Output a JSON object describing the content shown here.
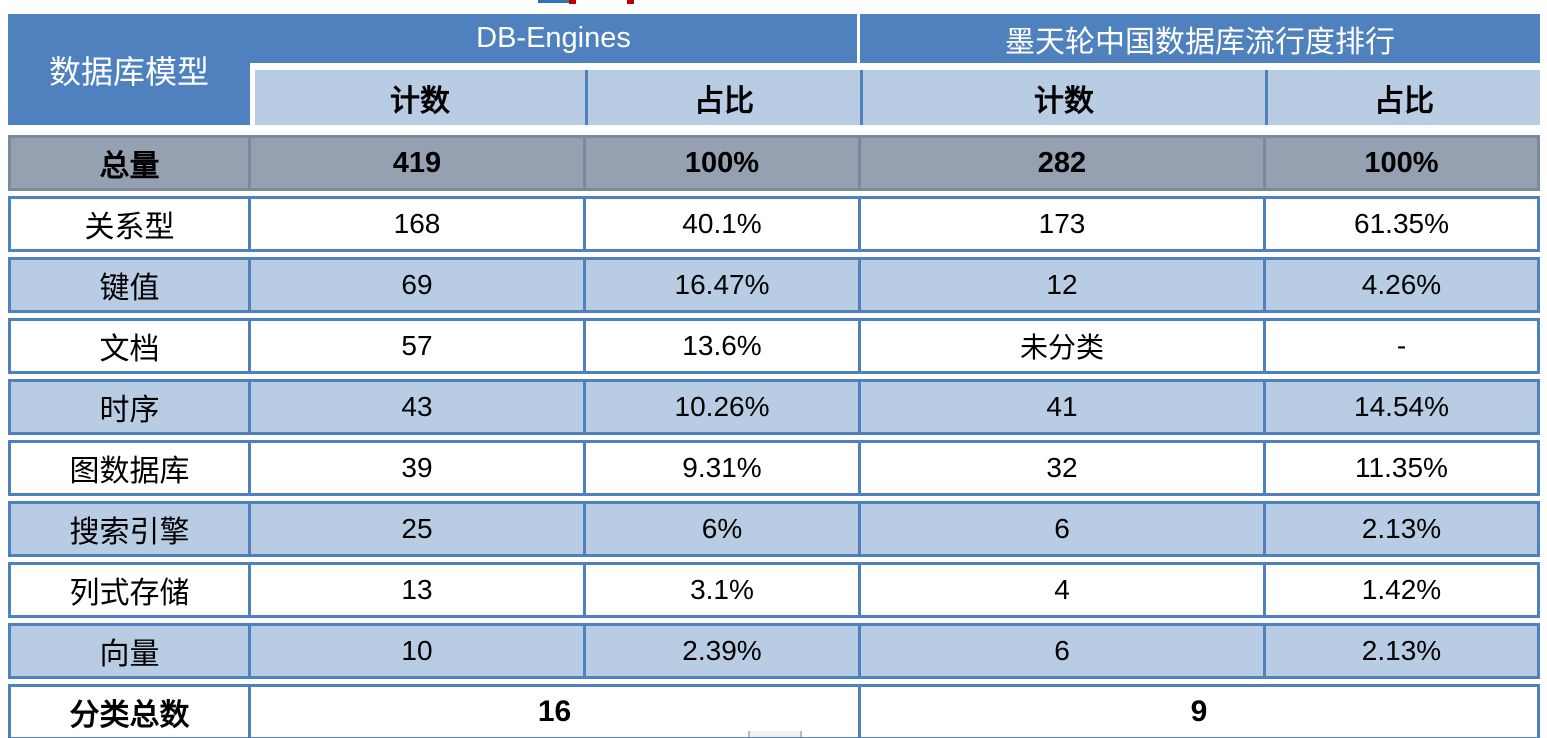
{
  "colors": {
    "header_blue": "#4E81BD",
    "band_light_blue": "#B8CCE4",
    "total_row_gray": "#95A1B1",
    "total_row_border": "#7B8A9B",
    "border_blue": "#4E81BD",
    "header_text": "#FFFFFF",
    "body_text": "#000000",
    "artifact_red": "#C00000",
    "artifact_blue": "#2E74B5"
  },
  "table": {
    "corner_header": "数据库模型",
    "groups": [
      {
        "label": "DB-Engines"
      },
      {
        "label": "墨天轮中国数据库流行度排行"
      }
    ],
    "subheaders": [
      "计数",
      "占比",
      "计数",
      "占比"
    ],
    "total_row": {
      "label": "总量",
      "cells": [
        "419",
        "100%",
        "282",
        "100%"
      ]
    },
    "rows": [
      {
        "label": "关系型",
        "cells": [
          "168",
          "40.1%",
          "173",
          "61.35%"
        ]
      },
      {
        "label": "键值",
        "cells": [
          "69",
          "16.47%",
          "12",
          "4.26%"
        ]
      },
      {
        "label": "文档",
        "cells": [
          "57",
          "13.6%",
          "未分类",
          "-"
        ]
      },
      {
        "label": "时序",
        "cells": [
          "43",
          "10.26%",
          "41",
          "14.54%"
        ]
      },
      {
        "label": "图数据库",
        "cells": [
          "39",
          "9.31%",
          "32",
          "11.35%"
        ]
      },
      {
        "label": "搜索引擎",
        "cells": [
          "25",
          "6%",
          "6",
          "2.13%"
        ]
      },
      {
        "label": "列式存储",
        "cells": [
          "13",
          "3.1%",
          "4",
          "1.42%"
        ]
      },
      {
        "label": "向量",
        "cells": [
          "10",
          "2.39%",
          "6",
          "2.13%"
        ]
      }
    ],
    "footer": {
      "label": "分类总数",
      "values": [
        "16",
        "9"
      ]
    }
  },
  "chart_data": {
    "type": "table",
    "title": "数据库模型统计：DB-Engines 与 墨天轮中国数据库流行度排行 对比",
    "column_groups": [
      "数据库模型",
      "DB-Engines",
      "墨天轮中国数据库流行度排行"
    ],
    "columns": [
      "数据库模型",
      "DB-Engines 计数",
      "DB-Engines 占比",
      "墨天轮 计数",
      "墨天轮 占比"
    ],
    "rows": [
      [
        "总量",
        "419",
        "100%",
        "282",
        "100%"
      ],
      [
        "关系型",
        "168",
        "40.1%",
        "173",
        "61.35%"
      ],
      [
        "键值",
        "69",
        "16.47%",
        "12",
        "4.26%"
      ],
      [
        "文档",
        "57",
        "13.6%",
        "未分类",
        "-"
      ],
      [
        "时序",
        "43",
        "10.26%",
        "41",
        "14.54%"
      ],
      [
        "图数据库",
        "39",
        "9.31%",
        "32",
        "11.35%"
      ],
      [
        "搜索引擎",
        "25",
        "6%",
        "6",
        "2.13%"
      ],
      [
        "列式存储",
        "13",
        "3.1%",
        "4",
        "1.42%"
      ],
      [
        "向量",
        "10",
        "2.39%",
        "6",
        "2.13%"
      ],
      [
        "分类总数",
        "16",
        "",
        "9",
        ""
      ]
    ]
  }
}
